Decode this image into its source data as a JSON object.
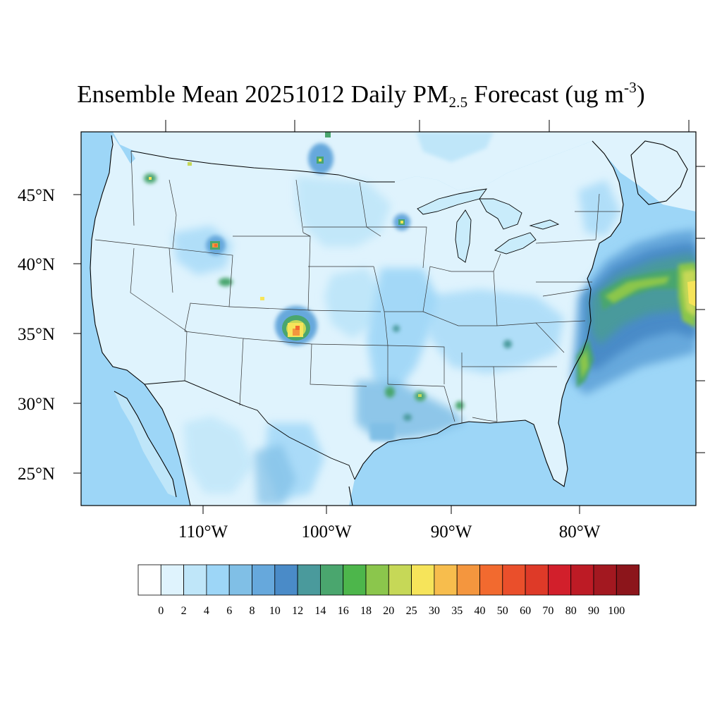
{
  "title": {
    "prefix": "Ensemble Mean 20251012 Daily PM",
    "subscript": "2.5",
    "middle": " Forecast (ug m",
    "superscript": "-3",
    "suffix": ")"
  },
  "map": {
    "lat_labels": [
      "45°N",
      "40°N",
      "35°N",
      "30°N",
      "25°N"
    ],
    "lon_labels": [
      "110°W",
      "100°W",
      "90°W",
      "80°W"
    ],
    "ocean_color": "#9dd6f7",
    "land_color": "#dff3fd"
  },
  "colorbar": {
    "labels": [
      "0",
      "2",
      "4",
      "6",
      "8",
      "10",
      "12",
      "14",
      "16",
      "18",
      "20",
      "25",
      "30",
      "35",
      "40",
      "50",
      "60",
      "70",
      "80",
      "90",
      "100"
    ],
    "colors": [
      "#ffffff",
      "#dff3fd",
      "#bfe6f9",
      "#9dd6f7",
      "#80bfe6",
      "#66a8dc",
      "#4a8bc8",
      "#4a9a9c",
      "#4aa66e",
      "#4db64b",
      "#8bc64c",
      "#c6d857",
      "#f6e45a",
      "#f7bd4d",
      "#f4963e",
      "#f26a2f",
      "#ea4f2b",
      "#de3a28",
      "#d21f2b",
      "#bd1b25",
      "#a31820",
      "#8c151b"
    ]
  }
}
